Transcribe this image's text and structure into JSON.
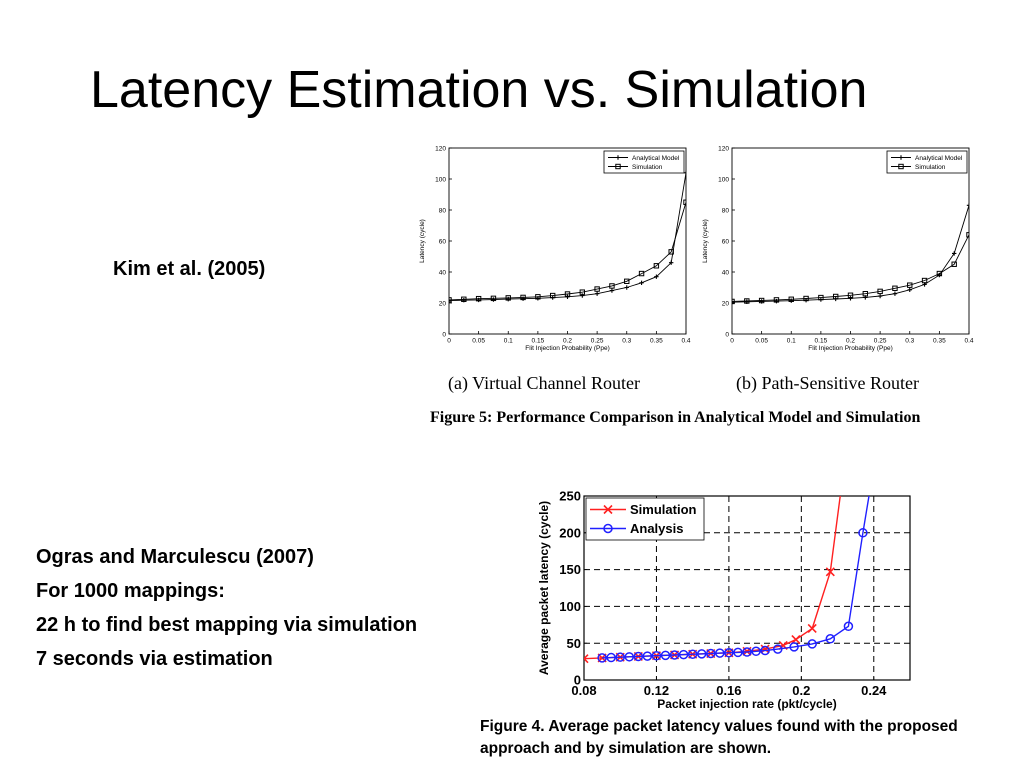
{
  "slide": {
    "title": "Latency Estimation vs. Simulation",
    "kim_label": "Kim et al. (2005)",
    "ogras_lines": [
      "Ogras and Marculescu (2007)",
      "For 1000 mappings:",
      "22 h to find best mapping via simulation",
      "7 seconds via estimation"
    ],
    "figure5_caption": "Figure 5: Performance Comparison in Analytical Model and Simulation",
    "figure4_caption": "Figure 4. Average packet latency values found with the proposed approach and by simulation are shown."
  },
  "chart_data": [
    {
      "id": "fig5a",
      "type": "line",
      "subtitle": "(a) Virtual Channel Router",
      "xlabel": "Flit Injection Probability (Ppe)",
      "ylabel": "Latency (cycle)",
      "xlim": [
        0,
        0.4
      ],
      "ylim": [
        0,
        120
      ],
      "xticks": [
        "0",
        "0.05",
        "0.1",
        "0.15",
        "0.2",
        "0.25",
        "0.3",
        "0.35",
        "0.4"
      ],
      "yticks": [
        "0",
        "20",
        "40",
        "60",
        "80",
        "100",
        "120"
      ],
      "legend": "top-right",
      "grid": false,
      "series": [
        {
          "name": "Analytical Model",
          "marker": "plus",
          "x": [
            0,
            0.025,
            0.05,
            0.075,
            0.1,
            0.125,
            0.15,
            0.175,
            0.2,
            0.225,
            0.25,
            0.275,
            0.3,
            0.325,
            0.35,
            0.375,
            0.4
          ],
          "y": [
            21.5,
            21.8,
            22,
            22.2,
            22.5,
            22.8,
            23,
            23.5,
            24,
            24.8,
            26,
            28,
            30,
            33,
            37,
            46,
            104
          ]
        },
        {
          "name": "Simulation",
          "marker": "square",
          "x": [
            0,
            0.025,
            0.05,
            0.075,
            0.1,
            0.125,
            0.15,
            0.175,
            0.2,
            0.225,
            0.25,
            0.275,
            0.3,
            0.325,
            0.35,
            0.375,
            0.4
          ],
          "y": [
            22,
            22.4,
            22.8,
            23,
            23.3,
            23.6,
            24,
            24.8,
            25.8,
            27,
            29,
            31,
            34,
            39,
            44,
            53,
            85
          ]
        }
      ]
    },
    {
      "id": "fig5b",
      "type": "line",
      "subtitle": "(b) Path-Sensitive Router",
      "xlabel": "Flit Injection Probability (Ppe)",
      "ylabel": "Latency (cycle)",
      "xlim": [
        0,
        0.4
      ],
      "ylim": [
        0,
        120
      ],
      "xticks": [
        "0",
        "0.05",
        "0.1",
        "0.15",
        "0.2",
        "0.25",
        "0.3",
        "0.35",
        "0.4"
      ],
      "yticks": [
        "0",
        "20",
        "40",
        "60",
        "80",
        "100",
        "120"
      ],
      "legend": "top-right",
      "grid": false,
      "series": [
        {
          "name": "Analytical Model",
          "marker": "plus",
          "x": [
            0,
            0.025,
            0.05,
            0.075,
            0.1,
            0.125,
            0.15,
            0.175,
            0.2,
            0.225,
            0.25,
            0.275,
            0.3,
            0.325,
            0.35,
            0.375,
            0.4
          ],
          "y": [
            20.5,
            20.8,
            21,
            21.2,
            21.5,
            21.8,
            22.2,
            22.6,
            23,
            23.6,
            24.5,
            26,
            28.5,
            32,
            38,
            52,
            83
          ]
        },
        {
          "name": "Simulation",
          "marker": "square",
          "x": [
            0,
            0.025,
            0.05,
            0.075,
            0.1,
            0.125,
            0.15,
            0.175,
            0.2,
            0.225,
            0.25,
            0.275,
            0.3,
            0.325,
            0.35,
            0.375,
            0.4
          ],
          "y": [
            21,
            21.3,
            21.6,
            22,
            22.4,
            22.9,
            23.5,
            24.2,
            25,
            26,
            27.5,
            29.5,
            31.5,
            34.5,
            39,
            45,
            64
          ]
        }
      ]
    },
    {
      "id": "fig4",
      "type": "line",
      "xlabel": "Packet injection rate (pkt/cycle)",
      "ylabel": "Average packet latency (cycle)",
      "xlim": [
        0.08,
        0.26
      ],
      "ylim": [
        0,
        250
      ],
      "xticks": [
        "0.08",
        "0.12",
        "0.16",
        "0.2",
        "0.24"
      ],
      "xtick_values": [
        0.08,
        0.12,
        0.16,
        0.2,
        0.24
      ],
      "yticks": [
        "0",
        "50",
        "100",
        "150",
        "200",
        "250"
      ],
      "legend": "top-left",
      "grid": true,
      "series": [
        {
          "name": "Simulation",
          "marker": "x",
          "color": "#ff2020",
          "x": [
            0.08,
            0.09,
            0.1,
            0.11,
            0.12,
            0.13,
            0.14,
            0.15,
            0.16,
            0.17,
            0.18,
            0.19,
            0.197,
            0.206,
            0.216,
            0.222
          ],
          "y": [
            29,
            30,
            31,
            32,
            33,
            34,
            35,
            36,
            37,
            39,
            42,
            47,
            55,
            70,
            147,
            260
          ]
        },
        {
          "name": "Analysis",
          "marker": "circle",
          "color": "#2020ff",
          "x": [
            0.09,
            0.095,
            0.1,
            0.105,
            0.11,
            0.115,
            0.12,
            0.125,
            0.13,
            0.135,
            0.14,
            0.145,
            0.15,
            0.155,
            0.16,
            0.165,
            0.17,
            0.175,
            0.18,
            0.187,
            0.196,
            0.206,
            0.216,
            0.226,
            0.234,
            0.238
          ],
          "y": [
            30,
            30.5,
            31,
            31.5,
            32,
            32.5,
            33,
            33.5,
            34,
            34.5,
            35,
            35.5,
            36,
            36.5,
            37,
            37.5,
            38,
            39,
            40,
            42,
            45,
            49,
            56,
            73,
            200,
            260
          ]
        }
      ]
    }
  ]
}
